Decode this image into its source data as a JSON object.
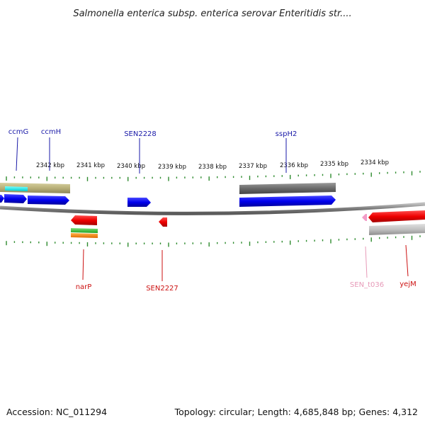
{
  "title": "Salmonella enterica subsp. enterica serovar Enteritidis str....",
  "footer": {
    "accession": "Accession: NC_011294",
    "summary": "Topology: circular; Length: 4,685,848 bp; Genes: 4,312"
  },
  "ruler": {
    "unit": "kbp",
    "ticks": [
      "2342 kbp",
      "2341 kbp",
      "2340 kbp",
      "2339 kbp",
      "2338 kbp",
      "2337 kbp",
      "2336 kbp",
      "2335 kbp",
      "2334 kbp"
    ]
  },
  "genes": {
    "forward": [
      "ccmG",
      "ccmH",
      "SEN2228",
      "sspH2"
    ],
    "reverse": [
      "narP",
      "SEN2227",
      "SEN_t036",
      "yejM"
    ]
  },
  "colors": {
    "forward_label": "#1a1aa8",
    "reverse_label": "#cc1111",
    "trna_label": "#e79ab8",
    "tick": "#2e8b2e",
    "backbone": "#8a8a8a",
    "cds_forward": "#0a0af0",
    "cds_reverse": "#ee1111",
    "gene_band": "#b8b078",
    "operon_band": "#6a6a6a"
  }
}
